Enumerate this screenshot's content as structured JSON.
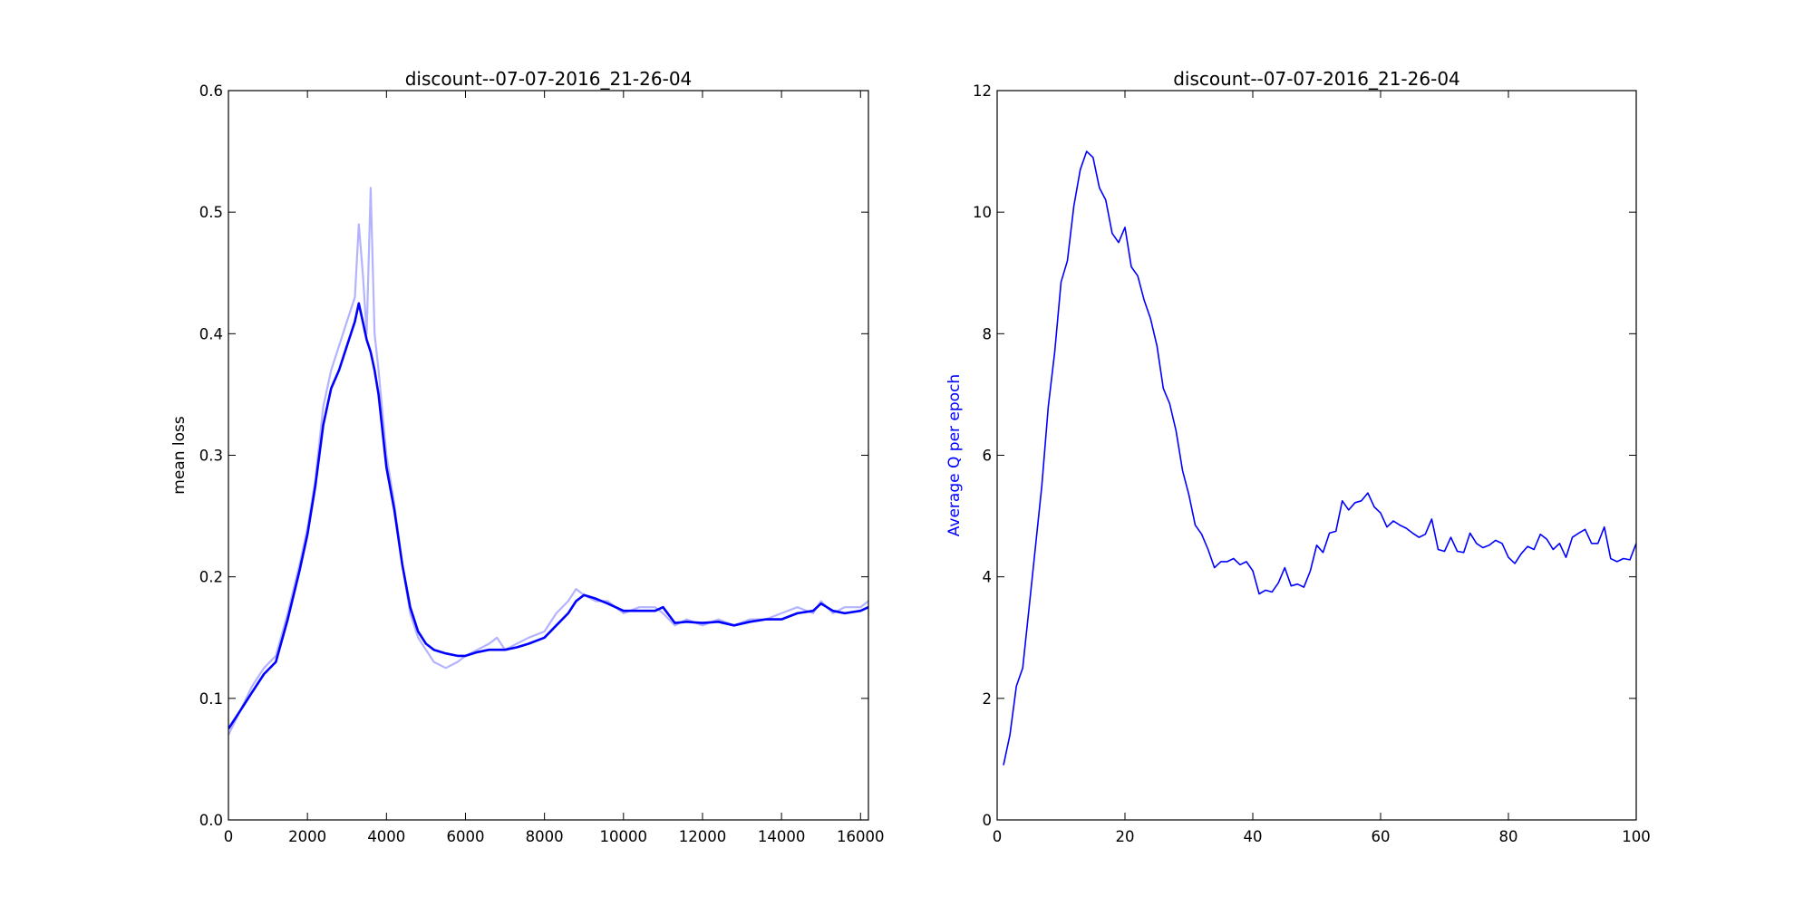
{
  "chart_data": [
    {
      "type": "line",
      "title": "discount--07-07-2016_21-26-04",
      "xlabel": "",
      "ylabel": "mean loss",
      "ylabel_color": "#000000",
      "xlim": [
        0,
        16200
      ],
      "ylim": [
        0.0,
        0.6
      ],
      "xticks": [
        0,
        2000,
        4000,
        6000,
        8000,
        10000,
        12000,
        14000,
        16000
      ],
      "xtick_labels": [
        "0",
        "2000",
        "4000",
        "6000",
        "8000",
        "10000",
        "12000",
        "14000",
        "16000"
      ],
      "yticks": [
        0.0,
        0.1,
        0.2,
        0.3,
        0.4,
        0.5,
        0.6
      ],
      "ytick_labels": [
        "0.0",
        "0.1",
        "0.2",
        "0.3",
        "0.4",
        "0.5",
        "0.6"
      ],
      "grid": false,
      "series": [
        {
          "role": "raw",
          "color": "#b3b3ff",
          "x": [
            0,
            300,
            600,
            900,
            1200,
            1500,
            1800,
            2000,
            2200,
            2400,
            2600,
            2800,
            3000,
            3200,
            3300,
            3400,
            3500,
            3600,
            3700,
            3800,
            4000,
            4200,
            4400,
            4600,
            4800,
            5000,
            5200,
            5500,
            5800,
            6000,
            6300,
            6600,
            6800,
            7000,
            7300,
            7600,
            8000,
            8300,
            8600,
            8800,
            9000,
            9300,
            9600,
            10000,
            10400,
            10800,
            11000,
            11300,
            11600,
            12000,
            12400,
            12800,
            13200,
            13600,
            14000,
            14400,
            14800,
            15000,
            15300,
            15600,
            16000,
            16200
          ],
          "y": [
            0.07,
            0.09,
            0.11,
            0.125,
            0.135,
            0.17,
            0.21,
            0.24,
            0.28,
            0.34,
            0.37,
            0.39,
            0.41,
            0.43,
            0.49,
            0.45,
            0.4,
            0.52,
            0.4,
            0.37,
            0.3,
            0.26,
            0.21,
            0.17,
            0.15,
            0.14,
            0.13,
            0.125,
            0.13,
            0.135,
            0.14,
            0.145,
            0.15,
            0.14,
            0.145,
            0.15,
            0.155,
            0.17,
            0.18,
            0.19,
            0.185,
            0.18,
            0.18,
            0.17,
            0.175,
            0.175,
            0.17,
            0.16,
            0.165,
            0.16,
            0.165,
            0.16,
            0.165,
            0.165,
            0.17,
            0.175,
            0.17,
            0.18,
            0.17,
            0.175,
            0.175,
            0.18
          ]
        },
        {
          "role": "smoothed",
          "color": "#0000ff",
          "x": [
            0,
            300,
            600,
            900,
            1200,
            1500,
            1800,
            2000,
            2200,
            2400,
            2600,
            2800,
            3000,
            3200,
            3300,
            3400,
            3500,
            3600,
            3700,
            3800,
            4000,
            4200,
            4400,
            4600,
            4800,
            5000,
            5200,
            5500,
            5800,
            6000,
            6300,
            6600,
            6800,
            7000,
            7300,
            7600,
            8000,
            8300,
            8600,
            8800,
            9000,
            9300,
            9600,
            10000,
            10400,
            10800,
            11000,
            11300,
            11600,
            12000,
            12400,
            12800,
            13200,
            13600,
            14000,
            14400,
            14800,
            15000,
            15300,
            15600,
            16000,
            16200
          ],
          "y": [
            0.075,
            0.09,
            0.105,
            0.12,
            0.13,
            0.165,
            0.205,
            0.235,
            0.275,
            0.325,
            0.355,
            0.37,
            0.39,
            0.41,
            0.425,
            0.41,
            0.395,
            0.385,
            0.37,
            0.35,
            0.29,
            0.255,
            0.21,
            0.175,
            0.155,
            0.145,
            0.14,
            0.137,
            0.135,
            0.135,
            0.138,
            0.14,
            0.14,
            0.14,
            0.142,
            0.145,
            0.15,
            0.16,
            0.17,
            0.18,
            0.185,
            0.182,
            0.178,
            0.172,
            0.172,
            0.172,
            0.175,
            0.162,
            0.163,
            0.162,
            0.163,
            0.16,
            0.163,
            0.165,
            0.165,
            0.17,
            0.172,
            0.178,
            0.172,
            0.17,
            0.172,
            0.175
          ]
        }
      ]
    },
    {
      "type": "line",
      "title": "discount--07-07-2016_21-26-04",
      "xlabel": "",
      "ylabel": "Average Q per epoch",
      "ylabel_color": "#0000ff",
      "xlim": [
        0,
        100
      ],
      "ylim": [
        0,
        12
      ],
      "xticks": [
        0,
        20,
        40,
        60,
        80,
        100
      ],
      "xtick_labels": [
        "0",
        "20",
        "40",
        "60",
        "80",
        "100"
      ],
      "yticks": [
        0,
        2,
        4,
        6,
        8,
        10,
        12
      ],
      "ytick_labels": [
        "0",
        "2",
        "4",
        "6",
        "8",
        "10",
        "12"
      ],
      "grid": false,
      "series": [
        {
          "role": "main",
          "color": "#0000ff",
          "x": [
            1,
            2,
            3,
            4,
            5,
            6,
            7,
            8,
            9,
            10,
            11,
            12,
            13,
            14,
            15,
            16,
            17,
            18,
            19,
            20,
            21,
            22,
            23,
            24,
            25,
            26,
            27,
            28,
            29,
            30,
            31,
            32,
            33,
            34,
            35,
            36,
            37,
            38,
            39,
            40,
            41,
            42,
            43,
            44,
            45,
            46,
            47,
            48,
            49,
            50,
            51,
            52,
            53,
            54,
            55,
            56,
            57,
            58,
            59,
            60,
            61,
            62,
            63,
            64,
            65,
            66,
            67,
            68,
            69,
            70,
            71,
            72,
            73,
            74,
            75,
            76,
            77,
            78,
            79,
            80,
            81,
            82,
            83,
            84,
            85,
            86,
            87,
            88,
            89,
            90,
            91,
            92,
            93,
            94,
            95,
            96,
            97,
            98,
            99,
            100
          ],
          "y": [
            0.9,
            1.4,
            2.2,
            2.5,
            3.5,
            4.5,
            5.5,
            6.8,
            7.7,
            8.85,
            9.2,
            10.1,
            10.7,
            11.0,
            10.9,
            10.4,
            10.2,
            9.65,
            9.5,
            9.75,
            9.1,
            8.95,
            8.55,
            8.25,
            7.8,
            7.1,
            6.85,
            6.4,
            5.75,
            5.35,
            4.85,
            4.7,
            4.45,
            4.15,
            4.25,
            4.25,
            4.3,
            4.2,
            4.25,
            4.1,
            3.72,
            3.78,
            3.75,
            3.9,
            4.15,
            3.85,
            3.88,
            3.83,
            4.1,
            4.52,
            4.4,
            4.72,
            4.75,
            5.25,
            5.1,
            5.22,
            5.25,
            5.38,
            5.15,
            5.05,
            4.82,
            4.92,
            4.85,
            4.8,
            4.72,
            4.65,
            4.7,
            4.95,
            4.45,
            4.42,
            4.65,
            4.42,
            4.4,
            4.72,
            4.55,
            4.48,
            4.52,
            4.6,
            4.55,
            4.32,
            4.22,
            4.38,
            4.5,
            4.45,
            4.7,
            4.62,
            4.45,
            4.55,
            4.32,
            4.65,
            4.72,
            4.78,
            4.55,
            4.55,
            4.82,
            4.3,
            4.25,
            4.3,
            4.28,
            4.55
          ]
        }
      ]
    }
  ]
}
